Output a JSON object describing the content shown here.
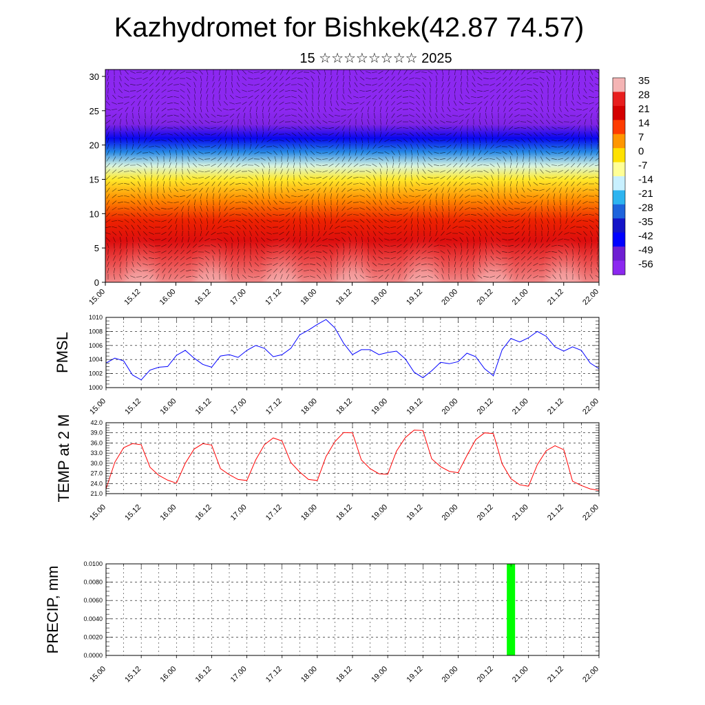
{
  "header": {
    "title": "Kazhydromet for Bishkek(42.87 74.57)",
    "subtitle": "15 ☆☆☆☆☆☆☆☆ 2025"
  },
  "chart_data": [
    {
      "id": "cross-section",
      "type": "heatmap",
      "ylim": [
        0,
        31
      ],
      "yticks": [
        0,
        5,
        10,
        15,
        20,
        25,
        30
      ],
      "xtick_labels": [
        "15.00",
        "15.12",
        "16.00",
        "16.12",
        "17.00",
        "17.12",
        "18.00",
        "18.12",
        "19.00",
        "19.12",
        "20.00",
        "20.12",
        "21.00",
        "21.12",
        "22.00"
      ],
      "colorbar": {
        "labels": [
          "35",
          "28",
          "21",
          "14",
          "7",
          "0",
          "-7",
          "-14",
          "-21",
          "-28",
          "-35",
          "-42",
          "-49",
          "-56"
        ],
        "colors": [
          "#f4b4b4",
          "#e81e1e",
          "#d40000",
          "#ff3c00",
          "#ff9600",
          "#ffe100",
          "#ffff96",
          "#c8f0ff",
          "#2db4f0",
          "#1e64dc",
          "#1414c8",
          "#0000ff",
          "#6e1ed2",
          "#8c28f0"
        ]
      },
      "vertical_profile": [
        [
          0,
          33
        ],
        [
          3,
          30
        ],
        [
          6,
          24
        ],
        [
          9,
          17
        ],
        [
          12,
          8
        ],
        [
          15,
          -2
        ],
        [
          17,
          -12
        ],
        [
          19,
          -25
        ],
        [
          21,
          -40
        ],
        [
          23,
          -53
        ],
        [
          25,
          -60
        ],
        [
          27,
          -58
        ],
        [
          31,
          -58
        ]
      ],
      "warm_bubble_centers": [
        "15.12",
        "16.12",
        "17.12",
        "18.12",
        "19.12",
        "20.12",
        "21.12"
      ],
      "grid": false
    },
    {
      "id": "pmsl",
      "type": "line",
      "ylabel": "PMSL",
      "ylim": [
        1000,
        1010
      ],
      "yticks": [
        1000,
        1002,
        1004,
        1006,
        1008,
        1010
      ],
      "xtick_labels": [
        "15.00",
        "15.12",
        "16.00",
        "16.12",
        "17.00",
        "17.12",
        "18.00",
        "18.12",
        "19.00",
        "19.12",
        "20.00",
        "20.12",
        "21.00",
        "21.12",
        "22.00"
      ],
      "x_step_hours": 3,
      "series": [
        {
          "color": "#0000ff",
          "values": [
            1003.5,
            1004.2,
            1003.8,
            1001.8,
            1001.1,
            1002.5,
            1002.9,
            1003.0,
            1004.6,
            1005.3,
            1004.2,
            1003.3,
            1002.9,
            1004.5,
            1004.7,
            1004.3,
            1005.3,
            1006.0,
            1005.6,
            1004.4,
            1004.7,
            1005.6,
            1007.5,
            1008.2,
            1009.0,
            1009.7,
            1008.5,
            1006.3,
            1004.7,
            1005.4,
            1005.4,
            1004.7,
            1005.0,
            1005.2,
            1004.1,
            1002.2,
            1001.4,
            1002.4,
            1003.6,
            1003.4,
            1003.7,
            1004.9,
            1004.4,
            1002.7,
            1001.7,
            1005.4,
            1007.0,
            1006.5,
            1007.1,
            1008.0,
            1007.3,
            1005.8,
            1005.2,
            1005.8,
            1005.3,
            1003.5,
            1002.7
          ]
        }
      ],
      "grid": true
    },
    {
      "id": "temp",
      "type": "line",
      "ylabel": "TEMP at 2 M",
      "ylim": [
        21,
        42
      ],
      "yticks": [
        21,
        24,
        27,
        30,
        33,
        36,
        39,
        42
      ],
      "ytick_labels": [
        "21.0",
        "24.0",
        "27.0",
        "30.0",
        "33.0",
        "36.0",
        "39.0",
        "42.0"
      ],
      "xtick_labels": [
        "15.00",
        "15.12",
        "16.00",
        "16.12",
        "17.00",
        "17.12",
        "18.00",
        "18.12",
        "19.00",
        "19.12",
        "20.00",
        "20.12",
        "21.00",
        "21.12",
        "22.00"
      ],
      "x_step_hours": 3,
      "series": [
        {
          "color": "#ff0000",
          "values": [
            22.4,
            30.3,
            34.6,
            35.8,
            35.5,
            28.8,
            26.4,
            25.0,
            24.1,
            30.0,
            34.2,
            35.8,
            35.4,
            28.4,
            26.6,
            25.2,
            24.9,
            31.0,
            35.5,
            37.5,
            36.6,
            30.2,
            27.4,
            25.2,
            24.9,
            32.0,
            36.4,
            39.1,
            39.0,
            31.0,
            28.4,
            26.9,
            26.7,
            33.6,
            37.6,
            39.8,
            39.7,
            31.3,
            29.0,
            27.6,
            27.2,
            32.3,
            37.0,
            39.0,
            38.8,
            29.8,
            25.4,
            23.6,
            23.2,
            29.6,
            33.7,
            35.2,
            34.0,
            24.7,
            23.4,
            22.4,
            22.0
          ]
        }
      ],
      "grid": true
    },
    {
      "id": "precip",
      "type": "bar",
      "ylabel": "PRECIP, mm",
      "ylim": [
        0,
        0.01
      ],
      "yticks": [
        0,
        0.002,
        0.004,
        0.006,
        0.008,
        0.01
      ],
      "ytick_labels": [
        "0.0000",
        "0.0020",
        "0.0040",
        "0.0060",
        "0.0080",
        "0.0100"
      ],
      "xtick_labels": [
        "15.00",
        "15.12",
        "16.00",
        "16.12",
        "17.00",
        "17.12",
        "18.00",
        "18.12",
        "19.00",
        "19.12",
        "20.00",
        "20.12",
        "21.00",
        "21.12",
        "22.00"
      ],
      "x_step_hours": 3,
      "bars": [
        {
          "hour": 138,
          "value": 0.01,
          "color": "#00ff00"
        }
      ],
      "grid": true
    }
  ]
}
